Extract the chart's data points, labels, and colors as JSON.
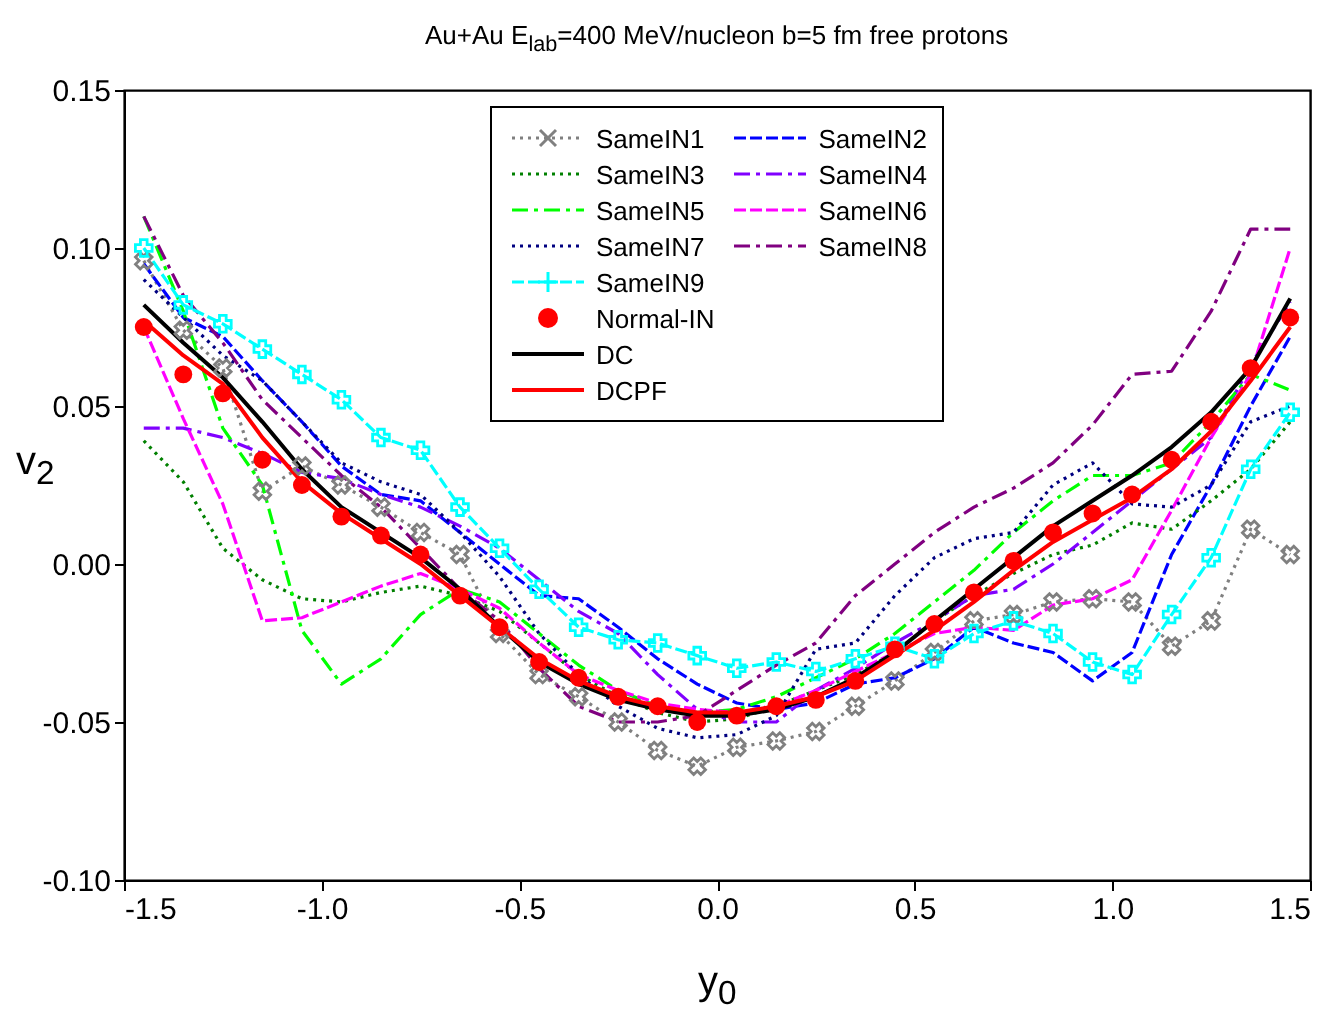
{
  "chart_data": {
    "type": "line",
    "title": "Au+Au  E$_{lab}$=400 MeV/nucleon  b=5 fm  free protons",
    "xlabel": "y$_{0}$",
    "ylabel": "v$_{2}$",
    "x": [
      -1.45,
      -1.35,
      -1.25,
      -1.15,
      -1.05,
      -0.95,
      -0.85,
      -0.75,
      -0.65,
      -0.55,
      -0.45,
      -0.35,
      -0.25,
      -0.15,
      -0.05,
      0.05,
      0.15,
      0.25,
      0.35,
      0.45,
      0.55,
      0.65,
      0.75,
      0.85,
      0.95,
      1.05,
      1.15,
      1.25,
      1.35,
      1.45
    ],
    "xlim": [
      -1.5,
      1.5
    ],
    "xticks": [
      {
        "value": -1.5,
        "label": "-1.5"
      },
      {
        "value": -1.0,
        "label": "-1.0"
      },
      {
        "value": -0.5,
        "label": "-0.5"
      },
      {
        "value": 0,
        "label": "0.0"
      },
      {
        "value": 0.5,
        "label": "0.5"
      },
      {
        "value": 1.0,
        "label": "1.0"
      },
      {
        "value": 1.5,
        "label": "1.5"
      }
    ],
    "ylim": [
      -0.1,
      0.15
    ],
    "yticks": [
      {
        "value": -0.1,
        "label": "-0.10"
      },
      {
        "value": -0.05,
        "label": "-0.05"
      },
      {
        "value": 0,
        "label": "0.00"
      },
      {
        "value": 0.05,
        "label": "0.05"
      },
      {
        "value": 0.1,
        "label": "0.10"
      },
      {
        "value": 0.15,
        "label": "0.15"
      }
    ],
    "legend": "top",
    "grid": false,
    "series": [
      {
        "name": "SameIN1",
        "color": "#808080",
        "line_style": "dotted",
        "marker": "cross",
        "values": [
          0.096,
          0.074,
          0.062,
          0.023,
          0.031,
          0.025,
          0.018,
          0.01,
          0.003,
          -0.022,
          -0.035,
          -0.042,
          -0.05,
          -0.059,
          -0.064,
          -0.058,
          -0.056,
          -0.053,
          -0.045,
          -0.037,
          -0.028,
          -0.018,
          -0.016,
          -0.012,
          -0.011,
          -0.012,
          -0.026,
          -0.018,
          0.011,
          0.003
        ]
      },
      {
        "name": "SameIN2",
        "color": "#0000ff",
        "line_style": "dashed",
        "values": [
          0.095,
          0.078,
          0.072,
          0.058,
          0.045,
          0.031,
          0.022,
          0.02,
          0.01,
          0.0,
          -0.01,
          -0.011,
          -0.02,
          -0.03,
          -0.038,
          -0.044,
          -0.046,
          -0.044,
          -0.038,
          -0.036,
          -0.03,
          -0.02,
          -0.025,
          -0.028,
          -0.037,
          -0.028,
          0.003,
          0.025,
          0.05,
          0.072
        ]
      },
      {
        "name": "SameIN3",
        "color": "#008000",
        "line_style": "dotted",
        "values": [
          0.039,
          0.026,
          0.005,
          -0.005,
          -0.011,
          -0.012,
          -0.009,
          -0.007,
          -0.01,
          -0.015,
          -0.025,
          -0.035,
          -0.042,
          -0.047,
          -0.05,
          -0.049,
          -0.045,
          -0.04,
          -0.035,
          -0.028,
          -0.018,
          -0.01,
          -0.003,
          0.003,
          0.006,
          0.013,
          0.011,
          0.02,
          0.03,
          0.045
        ]
      },
      {
        "name": "SameIN4",
        "color": "#8000ff",
        "line_style": "dashdot",
        "values": [
          0.043,
          0.043,
          0.04,
          0.035,
          0.029,
          0.027,
          0.022,
          0.018,
          0.012,
          0.005,
          -0.005,
          -0.015,
          -0.022,
          -0.035,
          -0.046,
          -0.05,
          -0.05,
          -0.04,
          -0.033,
          -0.025,
          -0.018,
          -0.01,
          -0.008,
          0.0,
          0.01,
          0.02,
          0.03,
          0.04,
          0.063,
          0.083
        ]
      },
      {
        "name": "SameIN5",
        "color": "#00ff00",
        "line_style": "dashdot",
        "values": [
          0.11,
          0.08,
          0.043,
          0.025,
          -0.021,
          -0.038,
          -0.03,
          -0.016,
          -0.008,
          -0.012,
          -0.022,
          -0.032,
          -0.04,
          -0.045,
          -0.047,
          -0.046,
          -0.042,
          -0.036,
          -0.03,
          -0.022,
          -0.012,
          -0.002,
          0.01,
          0.02,
          0.028,
          0.028,
          0.032,
          0.045,
          0.06,
          0.055
        ]
      },
      {
        "name": "SameIN6",
        "color": "#ff00ff",
        "line_style": "dashed",
        "values": [
          0.075,
          0.046,
          0.019,
          -0.018,
          -0.017,
          -0.012,
          -0.007,
          -0.003,
          -0.008,
          -0.014,
          -0.025,
          -0.035,
          -0.04,
          -0.044,
          -0.046,
          -0.047,
          -0.045,
          -0.04,
          -0.034,
          -0.028,
          -0.022,
          -0.02,
          -0.021,
          -0.013,
          -0.011,
          -0.005,
          0.017,
          0.04,
          0.06,
          0.1
        ]
      },
      {
        "name": "SameIN7",
        "color": "#000080",
        "line_style": "dotted",
        "values": [
          0.09,
          0.078,
          0.066,
          0.058,
          0.045,
          0.032,
          0.026,
          0.022,
          0.01,
          -0.004,
          -0.022,
          -0.035,
          -0.045,
          -0.052,
          -0.055,
          -0.054,
          -0.048,
          -0.027,
          -0.025,
          -0.01,
          0.002,
          0.008,
          0.01,
          0.025,
          0.032,
          0.019,
          0.018,
          0.025,
          0.045,
          0.05
        ]
      },
      {
        "name": "SameIN8",
        "color": "#800080",
        "line_style": "dashdot",
        "values": [
          0.11,
          0.085,
          0.07,
          0.052,
          0.04,
          0.028,
          0.018,
          0.005,
          -0.008,
          -0.018,
          -0.033,
          -0.045,
          -0.05,
          -0.05,
          -0.048,
          -0.04,
          -0.032,
          -0.025,
          -0.01,
          0.0,
          0.01,
          0.018,
          0.024,
          0.032,
          0.044,
          0.06,
          0.061,
          0.08,
          0.106,
          0.106
        ]
      },
      {
        "name": "SameIN9",
        "color": "#00ffff",
        "line_style": "dashed",
        "marker": "plus",
        "values": [
          0.1,
          0.082,
          0.076,
          0.068,
          0.06,
          0.052,
          0.04,
          0.036,
          0.018,
          0.005,
          -0.008,
          -0.02,
          -0.024,
          -0.025,
          -0.029,
          -0.033,
          -0.031,
          -0.034,
          -0.03,
          -0.026,
          -0.03,
          -0.022,
          -0.018,
          -0.022,
          -0.031,
          -0.035,
          -0.016,
          0.002,
          0.03,
          0.048
        ]
      },
      {
        "name": "Normal-IN",
        "type": "scatter",
        "color": "#ff0000",
        "marker": "circle",
        "values": [
          0.075,
          0.06,
          0.054,
          0.033,
          0.025,
          0.015,
          0.009,
          0.003,
          -0.01,
          -0.02,
          -0.031,
          -0.036,
          -0.042,
          -0.045,
          -0.05,
          -0.048,
          -0.045,
          -0.043,
          -0.037,
          -0.027,
          -0.019,
          -0.009,
          0.001,
          0.01,
          0.016,
          0.022,
          0.033,
          0.045,
          0.062,
          0.078
        ]
      },
      {
        "name": "DC",
        "color": "#000000",
        "line_style": "solid",
        "values": [
          0.082,
          0.07,
          0.059,
          0.045,
          0.03,
          0.018,
          0.01,
          0.002,
          -0.008,
          -0.02,
          -0.031,
          -0.038,
          -0.043,
          -0.046,
          -0.048,
          -0.048,
          -0.046,
          -0.042,
          -0.036,
          -0.028,
          -0.018,
          -0.008,
          0.002,
          0.012,
          0.02,
          0.028,
          0.037,
          0.048,
          0.062,
          0.084
        ]
      },
      {
        "name": "DCPF",
        "color": "#ff0000",
        "line_style": "solid",
        "values": [
          0.077,
          0.066,
          0.057,
          0.04,
          0.026,
          0.016,
          0.008,
          0.0,
          -0.01,
          -0.02,
          -0.03,
          -0.037,
          -0.042,
          -0.045,
          -0.047,
          -0.047,
          -0.045,
          -0.042,
          -0.037,
          -0.029,
          -0.021,
          -0.012,
          -0.002,
          0.007,
          0.014,
          0.021,
          0.03,
          0.042,
          0.058,
          0.075
        ]
      }
    ]
  }
}
